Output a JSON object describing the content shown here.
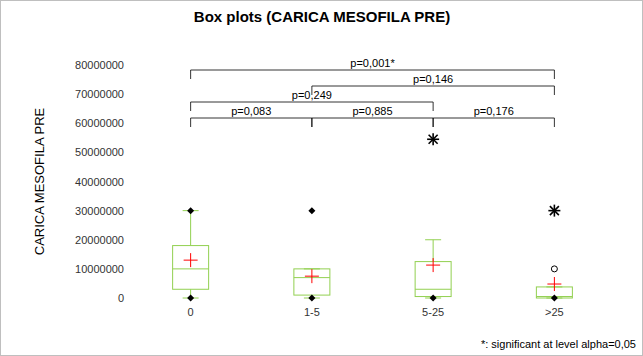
{
  "chart_data": {
    "type": "box",
    "title": "Box plots (CARICA MESOFILA PRE)",
    "y_label": "CARICA MESOFILA PRE",
    "note": "*: significant at level alpha=0,05",
    "categories": [
      "0",
      "1-5",
      "5-25",
      ">25"
    ],
    "color": "#92d050",
    "ylim": [
      0,
      80000000
    ],
    "yticks": [
      0,
      10000000,
      20000000,
      30000000,
      40000000,
      50000000,
      60000000,
      70000000,
      80000000
    ],
    "grid": false,
    "boxes": [
      {
        "whisker_low": 0,
        "q1": 3000000,
        "median": 10000000,
        "q3": 18000000,
        "whisker_high": 30000000,
        "mean": 13000000,
        "diamonds": [
          0,
          30000000
        ],
        "outliers": [],
        "extremes": []
      },
      {
        "whisker_low": 0,
        "q1": 1000000,
        "median": 7000000,
        "q3": 10000000,
        "whisker_high": 10000000,
        "mean": 7500000,
        "diamonds": [
          0,
          30000000
        ],
        "outliers": [],
        "extremes": []
      },
      {
        "whisker_low": 0,
        "q1": 500000,
        "median": 3000000,
        "q3": 12500000,
        "whisker_high": 20000000,
        "mean": 11300000,
        "diamonds": [
          0
        ],
        "outliers": [],
        "extremes": [
          54500000
        ]
      },
      {
        "whisker_low": 0,
        "q1": 0,
        "median": 500000,
        "q3": 3800000,
        "whisker_high": 3800000,
        "mean": 4800000,
        "diamonds": [
          0
        ],
        "outliers": [
          10000000
        ],
        "extremes": [
          30000000
        ]
      }
    ],
    "comparisons": [
      {
        "groups": [
          0,
          3
        ],
        "label": "p=0,001*"
      },
      {
        "groups": [
          1,
          3
        ],
        "label": "p=0,146"
      },
      {
        "groups": [
          0,
          2
        ],
        "label": "p=0,249"
      },
      {
        "groups": [
          0,
          1
        ],
        "label": "p=0,083"
      },
      {
        "groups": [
          1,
          2
        ],
        "label": "p=0,885"
      },
      {
        "groups": [
          2,
          3
        ],
        "label": "p=0,176"
      }
    ]
  }
}
